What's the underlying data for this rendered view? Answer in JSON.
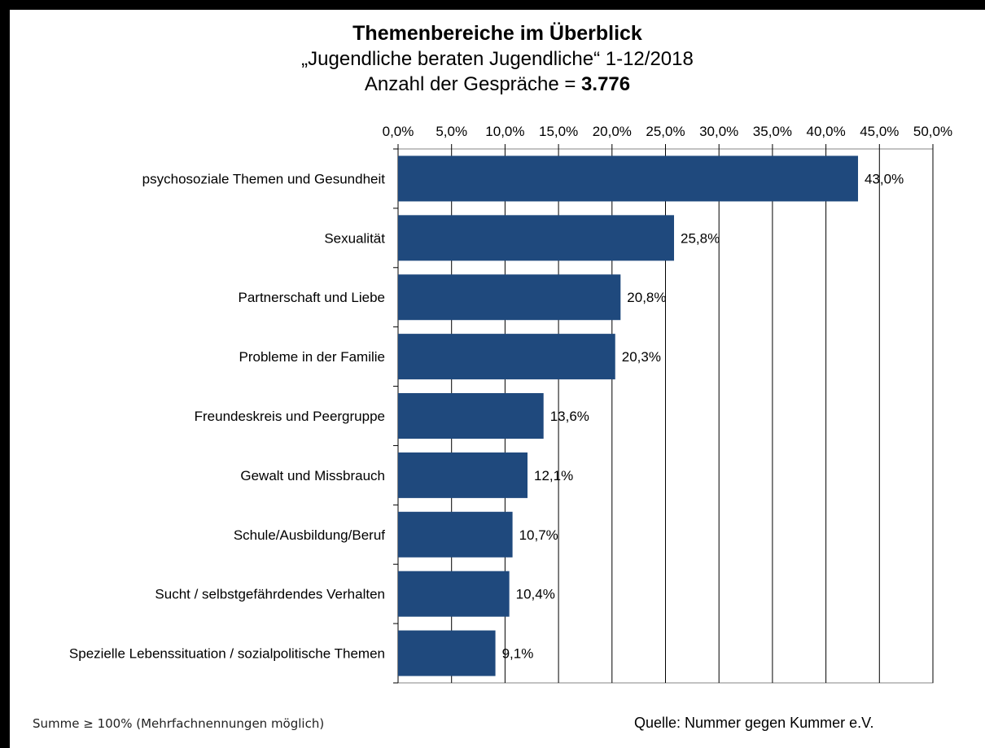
{
  "chart_data": {
    "type": "bar",
    "orientation": "horizontal",
    "title": "Themenbereiche im Überblick",
    "subtitle": "„Jugendliche beraten Jugendliche“ 1-12/2018",
    "count_label": "Anzahl der Gespräche = ",
    "count_value": "3.776",
    "categories": [
      "psychosoziale Themen und Gesundheit",
      "Sexualität",
      "Partnerschaft und Liebe",
      "Probleme in der Familie",
      "Freundeskreis und Peergruppe",
      "Gewalt und Missbrauch",
      "Schule/Ausbildung/Beruf",
      "Sucht / selbstgefährdendes Verhalten",
      "Spezielle Lebenssituation / sozialpolitische Themen"
    ],
    "values": [
      43.0,
      25.8,
      20.8,
      20.3,
      13.6,
      12.1,
      10.7,
      10.4,
      9.1
    ],
    "data_labels": [
      "43,0%",
      "25,8%",
      "20,8%",
      "20,3%",
      "13,6%",
      "12,1%",
      "10,7%",
      "10,4%",
      "9,1%"
    ],
    "xlim": [
      0,
      50
    ],
    "x_ticks": [
      0,
      5,
      10,
      15,
      20,
      25,
      30,
      35,
      40,
      45,
      50
    ],
    "x_tick_labels": [
      "0,0%",
      "5,0%",
      "10,0%",
      "15,0%",
      "20,0%",
      "25,0%",
      "30,0%",
      "35,0%",
      "40,0%",
      "45,0%",
      "50,0%"
    ],
    "x_axis_position": "top",
    "grid": true,
    "bar_color": "#1F497D"
  },
  "footnote": "Summe ≥ 100% (Mehrfachnennungen möglich)",
  "source": "Quelle: Nummer gegen Kummer e.V."
}
